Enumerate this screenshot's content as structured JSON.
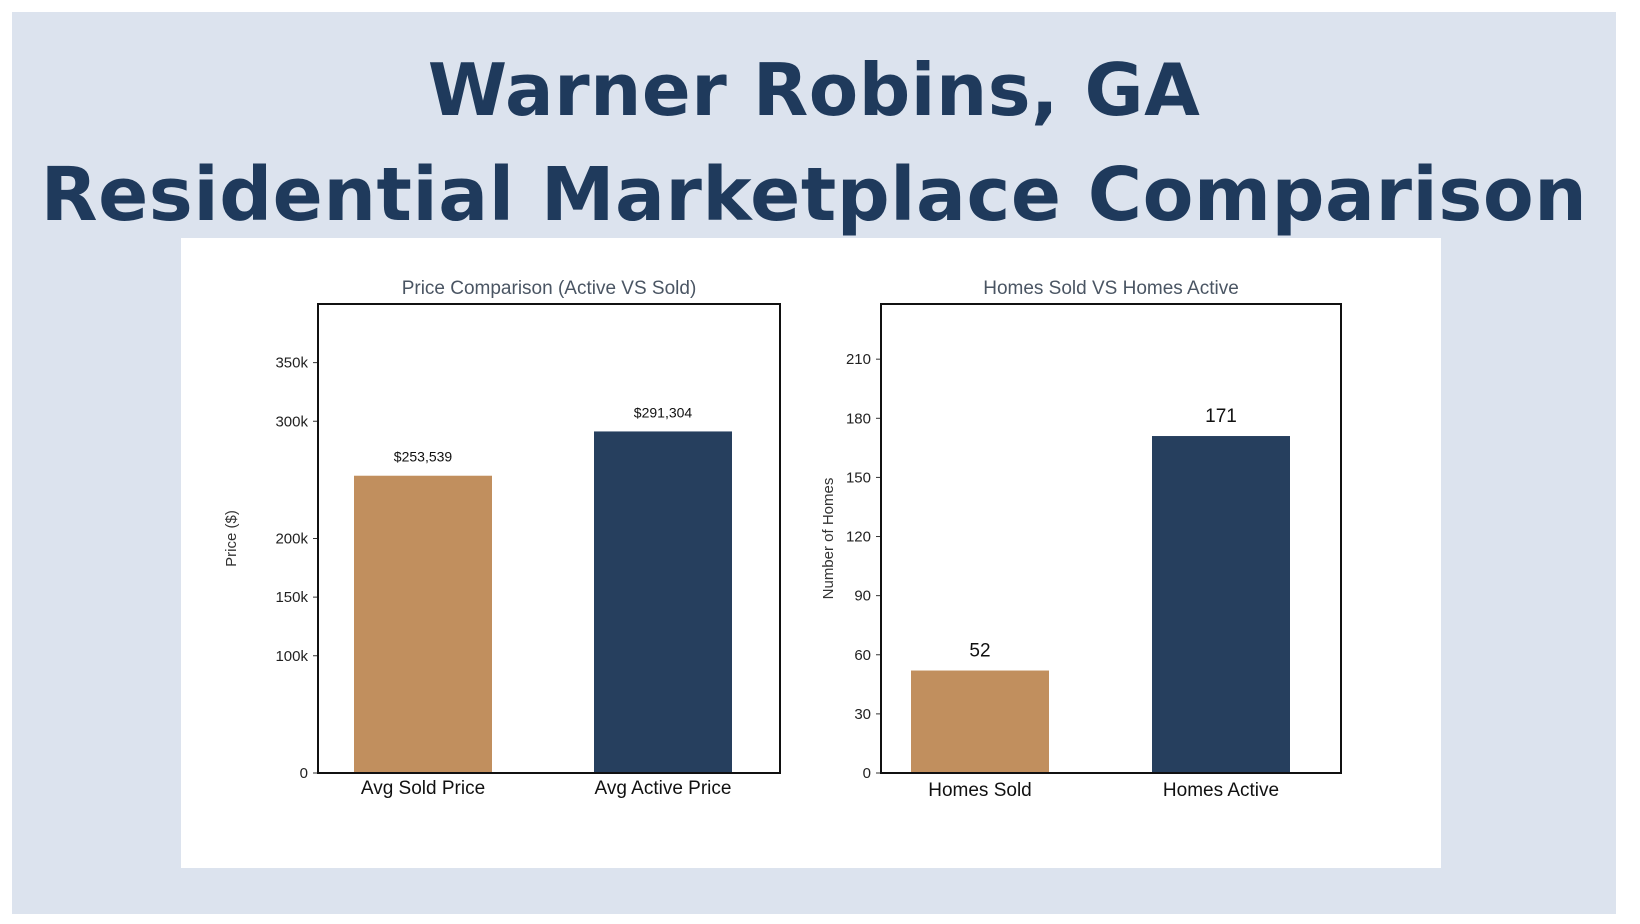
{
  "header": {
    "title_line1": "Warner Robins, GA",
    "title_line2": "Residential Marketplace Comparison"
  },
  "colors": {
    "background": "#dce3ee",
    "title": "#1f3a5c",
    "sold_bar": "#c18f5e",
    "active_bar": "#263f5e"
  },
  "chart_data": [
    {
      "type": "bar",
      "title": "Price Comparison (Active VS Sold)",
      "xlabel": "",
      "ylabel": "Price ($)",
      "ylim": [
        0,
        400000
      ],
      "yticks": [
        0,
        100000,
        150000,
        200000,
        300000,
        350000
      ],
      "ytick_labels": [
        "0",
        "100k",
        "150k",
        "200k",
        "300k",
        "350k"
      ],
      "categories": [
        "Avg Sold Price",
        "Avg Active Price"
      ],
      "values": [
        253539,
        291304
      ],
      "data_labels": [
        "$253,539",
        "$291,304"
      ],
      "grid": false
    },
    {
      "type": "bar",
      "title": "Homes Sold VS Homes Active",
      "xlabel": "",
      "ylabel": "Number of Homes",
      "ylim": [
        0,
        238
      ],
      "yticks": [
        0,
        30,
        60,
        90,
        120,
        150,
        180,
        210
      ],
      "ytick_labels": [
        "0",
        "30",
        "60",
        "90",
        "120",
        "150",
        "180",
        "210"
      ],
      "categories": [
        "Homes Sold",
        "Homes Active"
      ],
      "values": [
        52,
        171
      ],
      "data_labels": [
        "52",
        "171"
      ],
      "grid": false
    }
  ]
}
